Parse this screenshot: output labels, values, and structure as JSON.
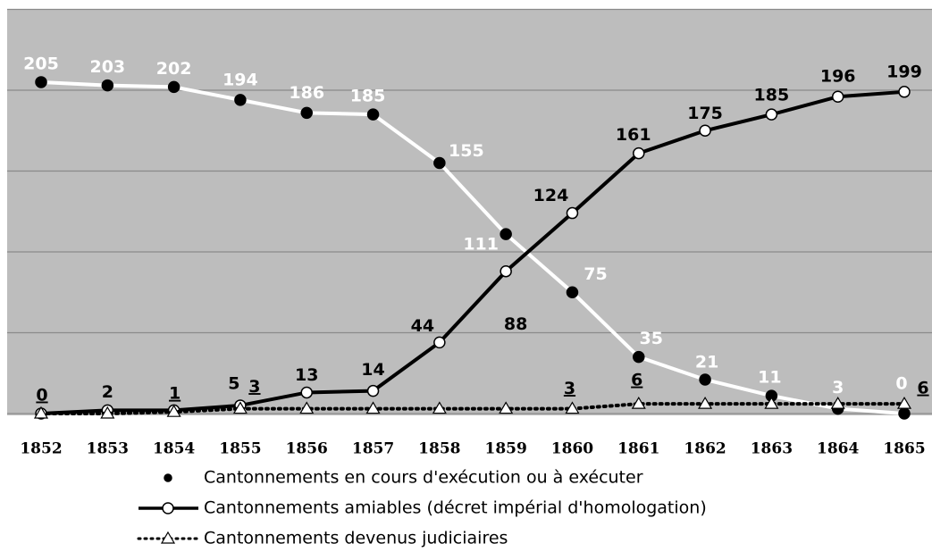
{
  "chart_data": {
    "type": "line",
    "categories": [
      "1852",
      "1853",
      "1854",
      "1855",
      "1856",
      "1857",
      "1858",
      "1859",
      "1860",
      "1861",
      "1862",
      "1863",
      "1864",
      "1865"
    ],
    "ylim": [
      0,
      250
    ],
    "yticks": [
      0,
      50,
      100,
      150,
      200,
      250
    ],
    "grid": true,
    "series": [
      {
        "name": "Cantonnements en cours d'exécution ou à exécuter",
        "color": "#ffffff",
        "marker": "filled-circle",
        "values": [
          205,
          203,
          202,
          194,
          186,
          185,
          155,
          111,
          75,
          35,
          21,
          11,
          3,
          0
        ]
      },
      {
        "name": "Cantonnements amiables (décret impérial d'homologation)",
        "color": "#000000",
        "marker": "open-circle",
        "values": [
          0,
          2,
          2,
          5,
          13,
          14,
          44,
          88,
          124,
          161,
          175,
          185,
          196,
          199
        ],
        "value_labels": [
          null,
          "2",
          null,
          "5",
          "13",
          "14",
          "44",
          "88",
          "124",
          "161",
          "175",
          "185",
          "196",
          "199"
        ]
      },
      {
        "name": "Cantonnements devenus judiciaires",
        "color": "#000000",
        "marker": "open-triangle",
        "dotted": true,
        "values": [
          0,
          0,
          1,
          3,
          3,
          3,
          3,
          3,
          3,
          6,
          6,
          6,
          6,
          6
        ],
        "value_labels": [
          "0",
          null,
          "1",
          "3",
          null,
          null,
          null,
          null,
          "3",
          "6",
          null,
          null,
          null,
          "6"
        ]
      }
    ]
  }
}
